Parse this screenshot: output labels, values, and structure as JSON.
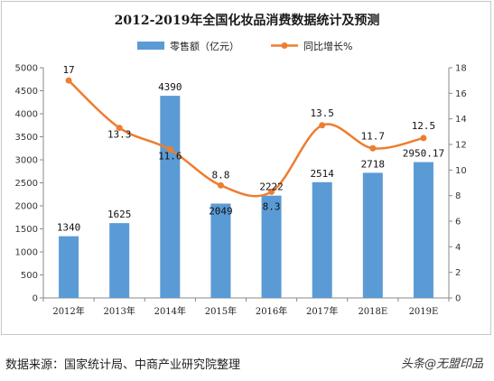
{
  "title": "2012-2019年全国化妆品消费数据统计及预测",
  "source": "数据来源：国家统计局、中商产业研究院整理",
  "brand": "头条@无盟印品",
  "colors": {
    "bar": "#5B9BD5",
    "line": "#ED7D31"
  },
  "chart_data": {
    "type": "bar",
    "title": "2012-2019年全国化妆品消费数据统计及预测",
    "categories": [
      "2012年",
      "2013年",
      "2014年",
      "2015年",
      "2016年",
      "2017年",
      "2018E",
      "2019E"
    ],
    "series": [
      {
        "name": "零售额（亿元）",
        "type": "bar",
        "axis": "left",
        "values": [
          1340,
          1625,
          4390,
          2049,
          2222,
          2514,
          2718,
          2950.17
        ],
        "labels": [
          "1340",
          "1625",
          "4390",
          "2049",
          "2222",
          "2514",
          "2718",
          "2950.17"
        ]
      },
      {
        "name": "同比增长%",
        "type": "line",
        "axis": "right",
        "values": [
          17,
          13.3,
          11.6,
          8.8,
          8.3,
          13.5,
          11.7,
          12.5
        ],
        "labels": [
          "17",
          "13.3",
          "11.6",
          "8.8",
          "8.3",
          "13.5",
          "11.7",
          "12.5"
        ]
      }
    ],
    "y_left": {
      "min": 0,
      "max": 5000,
      "ticks": [
        "0",
        "500",
        "1000",
        "1500",
        "2000",
        "2500",
        "3000",
        "3500",
        "4000",
        "4500",
        "5000"
      ]
    },
    "y_right": {
      "min": 0,
      "max": 18,
      "ticks": [
        "0",
        "2",
        "4",
        "6",
        "8",
        "10",
        "12",
        "14",
        "16",
        "18"
      ]
    },
    "legend_position": "top",
    "grid": false
  }
}
